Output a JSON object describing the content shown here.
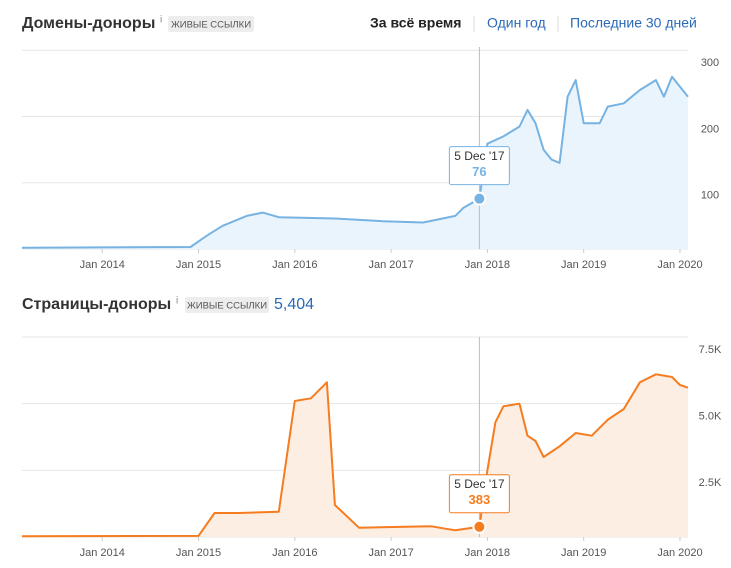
{
  "tabs": [
    "За всё время",
    "Один год",
    "Последние 30 дней"
  ],
  "chart_data": [
    {
      "type": "area",
      "title": "Домены-доноры",
      "info": "i",
      "badge": "ЖИВЫЕ ССЫЛКИ",
      "color": "#76b3e3",
      "fill": "#eaf4fc",
      "x": [
        "2013-03",
        "2014-12",
        "2015-02",
        "2015-04",
        "2015-07",
        "2015-09",
        "2015-11",
        "2016-06",
        "2016-12",
        "2017-05",
        "2017-09",
        "2017-10",
        "2017-12",
        "2018-01",
        "2018-03",
        "2018-05",
        "2018-06",
        "2018-07",
        "2018-08",
        "2018-09",
        "2018-10",
        "2018-11",
        "2018-12",
        "2019-01",
        "2019-03",
        "2019-04",
        "2019-06",
        "2019-08",
        "2019-10",
        "2019-11",
        "2019-12",
        "2020-01",
        "2020-02"
      ],
      "values": [
        2,
        3,
        20,
        35,
        50,
        55,
        48,
        46,
        42,
        40,
        50,
        62,
        76,
        159,
        170,
        185,
        210,
        190,
        150,
        135,
        130,
        230,
        255,
        190,
        190,
        215,
        220,
        240,
        255,
        230,
        260,
        245,
        230
      ],
      "xlim": [
        "2013-03",
        "2020-02"
      ],
      "ylim": [
        0,
        305
      ],
      "xticks": [
        {
          "value": "2014-01",
          "label": "Jan 2014"
        },
        {
          "value": "2015-01",
          "label": "Jan 2015"
        },
        {
          "value": "2016-01",
          "label": "Jan 2016"
        },
        {
          "value": "2017-01",
          "label": "Jan 2017"
        },
        {
          "value": "2018-01",
          "label": "Jan 2018"
        },
        {
          "value": "2019-01",
          "label": "Jan 2019"
        },
        {
          "value": "2020-01",
          "label": "Jan 2020"
        }
      ],
      "yticks": [
        100,
        200,
        300
      ],
      "grid": true,
      "tooltip": {
        "label": "5 Dec '17",
        "x": "2017-12",
        "value": 76
      }
    },
    {
      "type": "area",
      "title": "Страницы-доноры",
      "info": "i",
      "badge": "ЖИВЫЕ ССЫЛКИ",
      "total": {
        "value": 5404,
        "label": "5,404"
      },
      "color": "#f57c1f",
      "fill": "#fdeee3",
      "x": [
        "2013-03",
        "2015-01",
        "2015-03",
        "2015-06",
        "2015-11",
        "2016-01",
        "2016-03",
        "2016-05",
        "2016-06",
        "2016-09",
        "2017-06",
        "2017-09",
        "2017-12",
        "2018-01",
        "2018-02",
        "2018-03",
        "2018-05",
        "2018-06",
        "2018-07",
        "2018-08",
        "2018-10",
        "2018-12",
        "2019-02",
        "2019-04",
        "2019-06",
        "2019-08",
        "2019-10",
        "2019-12",
        "2020-01",
        "2020-02"
      ],
      "values": [
        30,
        40,
        900,
        900,
        950,
        5100,
        5200,
        5800,
        1200,
        350,
        400,
        250,
        383,
        2500,
        4300,
        4900,
        5000,
        3800,
        3600,
        3000,
        3400,
        3900,
        3800,
        4400,
        4800,
        5800,
        6100,
        6000,
        5700,
        5600
      ],
      "xlim": [
        "2013-03",
        "2020-02"
      ],
      "ylim": [
        0,
        7500
      ],
      "xticks": [
        {
          "value": "2014-01",
          "label": "Jan 2014"
        },
        {
          "value": "2015-01",
          "label": "Jan 2015"
        },
        {
          "value": "2016-01",
          "label": "Jan 2016"
        },
        {
          "value": "2017-01",
          "label": "Jan 2017"
        },
        {
          "value": "2018-01",
          "label": "Jan 2018"
        },
        {
          "value": "2019-01",
          "label": "Jan 2019"
        },
        {
          "value": "2020-01",
          "label": "Jan 2020"
        }
      ],
      "yticks": [
        {
          "value": 2500,
          "label": "2.5K"
        },
        {
          "value": 5000,
          "label": "5.0K"
        },
        {
          "value": 7500,
          "label": "7.5K"
        }
      ],
      "grid": true,
      "tooltip": {
        "label": "5 Dec '17",
        "x": "2017-12",
        "value": 383
      }
    }
  ]
}
